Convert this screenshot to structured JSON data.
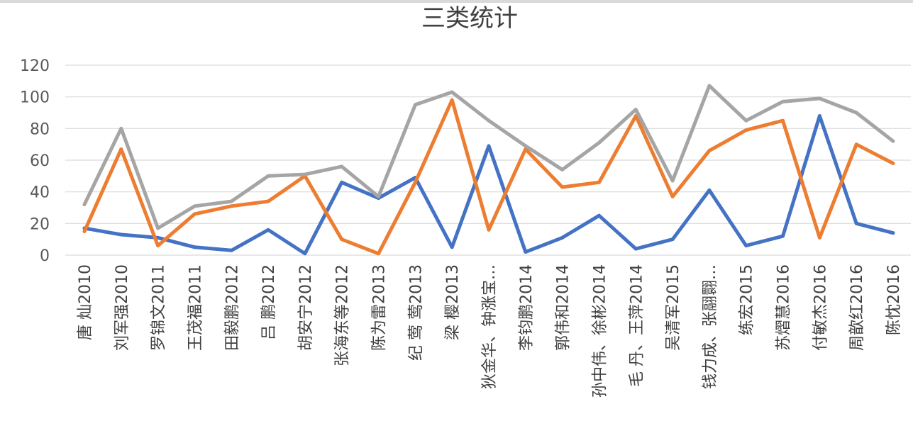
{
  "chart_data": {
    "type": "line",
    "title": "三类统计",
    "xlabel": "",
    "ylabel": "",
    "ylim": [
      0,
      120
    ],
    "yticks": [
      0,
      20,
      40,
      60,
      80,
      100,
      120
    ],
    "grid": true,
    "legend": "none",
    "categories": [
      "唐 灿2010",
      "刘军强2010",
      "罗锦文2011",
      "王茂福2011",
      "田毅鹏2012",
      "吕 鹏2012",
      "胡安宁2012",
      "张海东等2012",
      "陈为雷2013",
      "纪 莺 莺2013",
      "梁 樱2013",
      "狄金华、钟涨宝…",
      "李钧鹏2014",
      "郭伟和2014",
      "孙中伟、徐彬2014",
      "毛 丹、王萍2014",
      "吴清军2015",
      "钱力成、张翮翾…",
      "练宏2015",
      "苏熠慧2016",
      "付敏杰2016",
      "周歆红2016",
      "陈忱2016"
    ],
    "series": [
      {
        "color": "#4472c4",
        "values": [
          17,
          13,
          11,
          5,
          3,
          16,
          1,
          46,
          36,
          49,
          5,
          69,
          2,
          11,
          25,
          4,
          10,
          41,
          6,
          12,
          88,
          20,
          14
        ]
      },
      {
        "color": "#ed7d31",
        "values": [
          15,
          67,
          6,
          26,
          31,
          34,
          50,
          10,
          1,
          46,
          98,
          16,
          67,
          43,
          46,
          88,
          37,
          66,
          79,
          85,
          11,
          70,
          58
        ]
      },
      {
        "color": "#a5a5a5",
        "values": [
          32,
          80,
          17,
          31,
          34,
          50,
          51,
          56,
          37,
          95,
          103,
          85,
          69,
          54,
          71,
          92,
          47,
          107,
          85,
          97,
          99,
          90,
          72
        ]
      }
    ]
  }
}
